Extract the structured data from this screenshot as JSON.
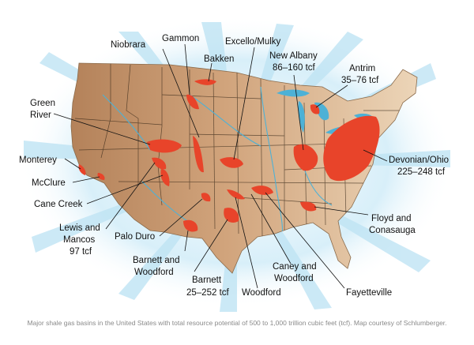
{
  "colors": {
    "land": "#c9976b",
    "land_light": "#e6cba9",
    "water": "#4db1d6",
    "basin": "#e8442a",
    "halo": "#bfe4f4",
    "border": "#3a2a1a"
  },
  "labels": {
    "gammon": "Gammon",
    "niobrara": "Niobrara",
    "excello": "Excello/Mulky",
    "bakken": "Bakken",
    "new_albany_1": "New Albany",
    "new_albany_2": "86–160 tcf",
    "antrim_1": "Antrim",
    "antrim_2": "35–76 tcf",
    "green_river_1": "Green",
    "green_river_2": "River",
    "monterey": "Monterey",
    "mcclure": "McClure",
    "cane_creek": "Cane Creek",
    "lewis_1": "Lewis and",
    "lewis_2": "Mancos",
    "lewis_3": "97 tcf",
    "palo_duro": "Palo Duro",
    "barnett_wood_1": "Barnett and",
    "barnett_wood_2": "Woodford",
    "barnett_1": "Barnett",
    "barnett_2": "25–252 tcf",
    "woodford": "Woodford",
    "caney_1": "Caney and",
    "caney_2": "Woodford",
    "fayetteville": "Fayetteville",
    "floyd_1": "Floyd and",
    "floyd_2": "Conasauga",
    "devonian_1": "Devonian/Ohio",
    "devonian_2": "225–248 tcf"
  },
  "caption": "Major shale gas basins in the United States with total resource potential of 500 to 1,000 trillion cubic feet (tcf). Map courtesy of Schlumberger."
}
